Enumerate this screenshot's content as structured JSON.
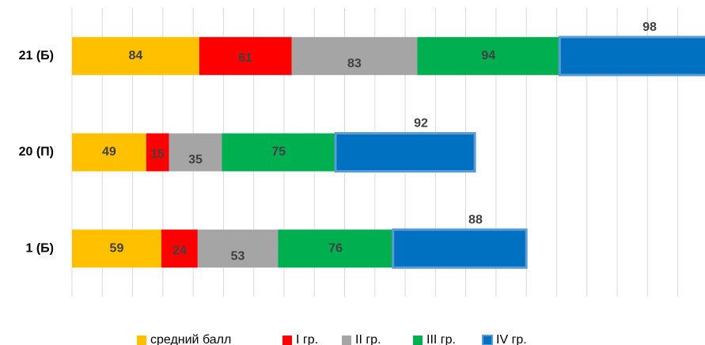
{
  "chart_data": {
    "type": "stacked_bar_horizontal",
    "categories": [
      "21 (Б)",
      "20 (П)",
      "1 (Б)"
    ],
    "series": [
      {
        "name": "средний балл",
        "color": "#ffc000",
        "values": [
          84,
          49,
          59
        ]
      },
      {
        "name": "I гр.",
        "color": "#ff0000",
        "values": [
          61,
          15,
          24
        ]
      },
      {
        "name": "II гр.",
        "color": "#a5a5a5",
        "values": [
          83,
          35,
          53
        ]
      },
      {
        "name": "III гр.",
        "color": "#00b050",
        "values": [
          94,
          75,
          76
        ]
      },
      {
        "name": "IV гр.",
        "color": "#0070c0",
        "values": [
          98,
          92,
          88
        ]
      }
    ],
    "xlim": [
      0,
      418
    ],
    "xticks": [
      0,
      20,
      40,
      60,
      80,
      100,
      120,
      140,
      160,
      180,
      200,
      220,
      240,
      260,
      280,
      300,
      320,
      340,
      360,
      380,
      400
    ],
    "grid": true,
    "legend": "bottom"
  }
}
